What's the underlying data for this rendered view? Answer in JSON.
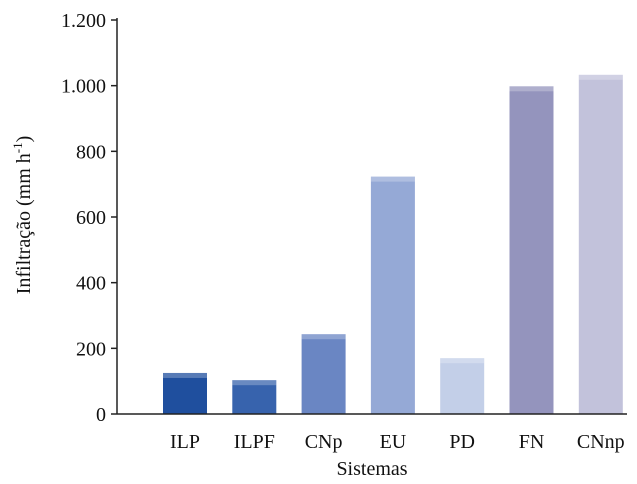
{
  "chart_data": {
    "type": "bar",
    "categories": [
      "ILP",
      "ILPF",
      "CNp",
      "EU",
      "PD",
      "FN",
      "CNnp"
    ],
    "values": [
      125,
      103,
      243,
      723,
      170,
      998,
      1033
    ],
    "ylim": [
      0,
      1200
    ],
    "yticks": [
      0,
      200,
      400,
      600,
      800,
      1000,
      1200
    ],
    "ytick_labels": [
      "0",
      "200",
      "400",
      "600",
      "800",
      "1.000",
      "1.200"
    ],
    "xlabel": "Sistemas",
    "ylabel_main": "Infiltração (mm h",
    "ylabel_sup": "-1",
    "ylabel_end": ")",
    "grid": false,
    "colors": [
      "#1f4f9e",
      "#3763ad",
      "#6a86c3",
      "#95a9d6",
      "#c3cfe8",
      "#9494bd",
      "#c2c2db"
    ]
  }
}
